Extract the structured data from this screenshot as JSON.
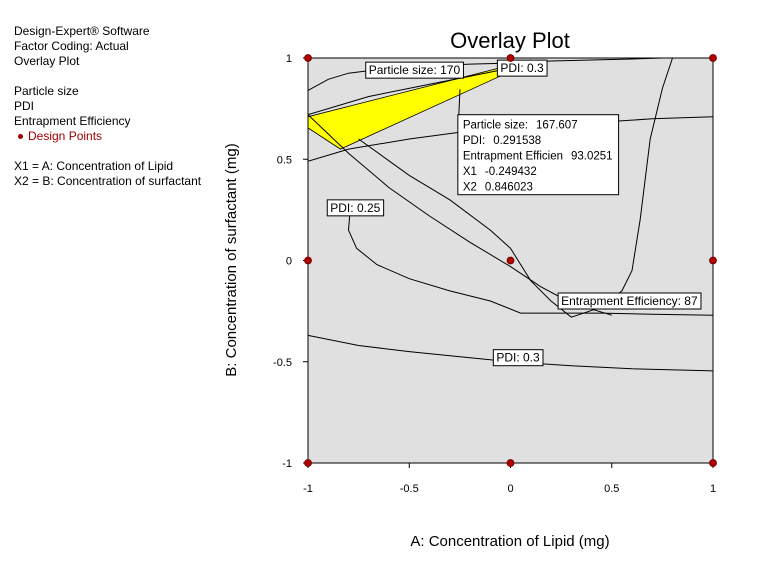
{
  "info_panel": {
    "software": "Design-Expert® Software",
    "coding": "Factor Coding: Actual",
    "plot_kind": "Overlay Plot",
    "responses": [
      "Particle size",
      "PDI",
      "Entrapment Efficiency"
    ],
    "design_points_label": "Design Points",
    "factors": [
      "X1 = A: Concentration of Lipid",
      "X2 = B: Concentration of surfactant"
    ]
  },
  "chart_data": {
    "type": "contour",
    "title": "Overlay Plot",
    "xlabel": "A: Concentration of Lipid (mg)",
    "ylabel": "B: Concentration of surfactant (mg)",
    "xlim": [
      -1,
      1
    ],
    "ylim": [
      -1,
      1
    ],
    "xticks": [
      "-1",
      "-0.5",
      "0",
      "0.5",
      "1"
    ],
    "yticks": [
      "-1",
      "-0.5",
      "0",
      "0.5",
      "1"
    ],
    "colors": {
      "background": "#e0e0e0",
      "feasible_region": "#ffff00",
      "design_point": "#b00000",
      "contour": "#000000"
    },
    "feasible_region": [
      [
        -1,
        0.71
      ],
      [
        -1,
        0.655
      ],
      [
        -0.84,
        0.55
      ],
      [
        -0.03,
        0.92
      ],
      [
        0.1,
        0.99
      ]
    ],
    "contours": [
      {
        "label": "Particle size: 170",
        "label_at": [
          -0.7,
          0.94
        ],
        "points": [
          [
            -1,
            0.84
          ],
          [
            -0.9,
            0.895
          ],
          [
            -0.8,
            0.925
          ],
          [
            -0.6,
            0.95
          ],
          [
            -0.4,
            0.96
          ],
          [
            -0.2,
            0.97
          ],
          [
            0,
            0.975
          ],
          [
            0.2,
            0.985
          ],
          [
            0.4,
            0.99
          ],
          [
            0.6,
            0.995
          ],
          [
            0.75,
            1
          ]
        ]
      },
      {
        "points": [
          [
            -1,
            0.49
          ],
          [
            -0.8,
            0.55
          ],
          [
            -0.5,
            0.6
          ],
          [
            -0.2,
            0.64
          ],
          [
            0.1,
            0.66
          ],
          [
            0.4,
            0.68
          ],
          [
            0.7,
            0.7
          ],
          [
            1,
            0.71
          ]
        ]
      },
      {
        "label": "PDI: 0.3",
        "label_at": [
          -0.05,
          0.95
        ],
        "points": [
          [
            -1,
            0.72
          ],
          [
            -0.7,
            0.81
          ],
          [
            -0.4,
            0.87
          ],
          [
            -0.2,
            0.91
          ],
          [
            0,
            0.95
          ],
          [
            0.1,
            0.99
          ]
        ]
      },
      {
        "points": [
          [
            -1,
            0.72
          ],
          [
            -0.8,
            0.53
          ],
          [
            -0.6,
            0.36
          ],
          [
            -0.4,
            0.22
          ],
          [
            -0.2,
            0.09
          ],
          [
            0,
            -0.03
          ],
          [
            0.15,
            -0.13
          ],
          [
            0.3,
            -0.21
          ],
          [
            0.5,
            -0.27
          ]
        ]
      },
      {
        "label": "PDI: 0.25",
        "label_at": [
          -0.89,
          0.26
        ],
        "points": [
          [
            -0.79,
            0.27
          ],
          [
            -0.8,
            0.15
          ],
          [
            -0.76,
            0.06
          ],
          [
            -0.66,
            -0.02
          ],
          [
            -0.5,
            -0.09
          ],
          [
            -0.3,
            -0.15
          ],
          [
            -0.1,
            -0.2
          ],
          [
            0.05,
            -0.26
          ],
          [
            0.15,
            -0.26
          ],
          [
            0.45,
            -0.26
          ],
          [
            0.7,
            -0.265
          ],
          [
            1,
            -0.27
          ]
        ]
      },
      {
        "label": "Entrapment Efficiency: 87",
        "label_at": [
          0.25,
          -0.2
        ],
        "points": [
          [
            -0.75,
            0.6
          ],
          [
            -0.5,
            0.42
          ],
          [
            -0.3,
            0.3
          ],
          [
            -0.1,
            0.15
          ],
          [
            0,
            0.06
          ],
          [
            0.1,
            -0.1
          ],
          [
            0.2,
            -0.2
          ],
          [
            0.3,
            -0.28
          ],
          [
            0.45,
            -0.23
          ],
          [
            0.55,
            -0.15
          ],
          [
            0.6,
            -0.05
          ],
          [
            0.64,
            0.2
          ],
          [
            0.69,
            0.6
          ],
          [
            0.75,
            0.85
          ],
          [
            0.8,
            1
          ]
        ]
      },
      {
        "label": "PDI: 0.3",
        "label_at": [
          -0.07,
          -0.48
        ],
        "points": [
          [
            -1,
            -0.37
          ],
          [
            -0.75,
            -0.42
          ],
          [
            -0.5,
            -0.45
          ],
          [
            -0.2,
            -0.48
          ],
          [
            0,
            -0.5
          ],
          [
            0.3,
            -0.52
          ],
          [
            0.6,
            -0.535
          ],
          [
            1,
            -0.545
          ]
        ]
      }
    ],
    "design_points": [
      [
        -1,
        1
      ],
      [
        0,
        1
      ],
      [
        1,
        1
      ],
      [
        -1,
        0
      ],
      [
        0,
        0
      ],
      [
        1,
        0
      ],
      [
        -1,
        -1
      ],
      [
        0,
        -1
      ],
      [
        1,
        -1
      ]
    ],
    "flag": {
      "point": [
        -0.249432,
        0.846023
      ],
      "box_at": [
        -0.26,
        0.72
      ],
      "rows": [
        {
          "label": "Particle size:",
          "value": "167.607"
        },
        {
          "label": "PDI:",
          "value": "0.291538"
        },
        {
          "label": "Entrapment Efficien",
          "value": "93.0251"
        },
        {
          "label": "X1",
          "value": "-0.249432"
        },
        {
          "label": "X2",
          "value": "0.846023"
        }
      ]
    }
  }
}
